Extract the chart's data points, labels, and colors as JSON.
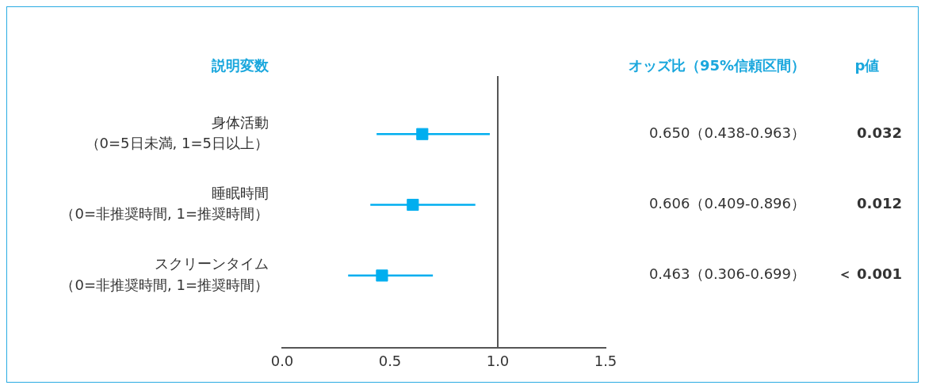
{
  "chart_data": {
    "type": "scatter",
    "orientation": "horizontal",
    "ylabel": "説明変数",
    "categories": [
      "身体活動（0=5日未満, 1=5日以上）",
      "睡眠時間（0=非推奨時間, 1=推奨時間）",
      "スクリーンタイム（0=非推奨時間, 1=推奨時間）"
    ],
    "values": [
      0.65,
      0.606,
      0.463
    ],
    "errors": [
      [
        0.438,
        0.963
      ],
      [
        0.409,
        0.896
      ],
      [
        0.306,
        0.699
      ]
    ],
    "value_labels": [
      "0.650（0.438-0.963）",
      "0.606（0.409-0.896）",
      "0.463（0.306-0.699）"
    ],
    "annotations": [
      "オッズ比（95%信頼区間）",
      "p値",
      "0.032",
      "0.012",
      "＜ 0.001"
    ],
    "color": "#00aeef",
    "marker": "square",
    "xlim": [
      0,
      1.5
    ],
    "xticks": [
      {
        "value": 0,
        "label": "0.0"
      },
      0.5,
      {
        "value": 1,
        "label": "1.0"
      },
      1.5
    ],
    "ref_lines": [
      {
        "axis": "x",
        "value": 1,
        "color": "#555555"
      }
    ]
  }
}
